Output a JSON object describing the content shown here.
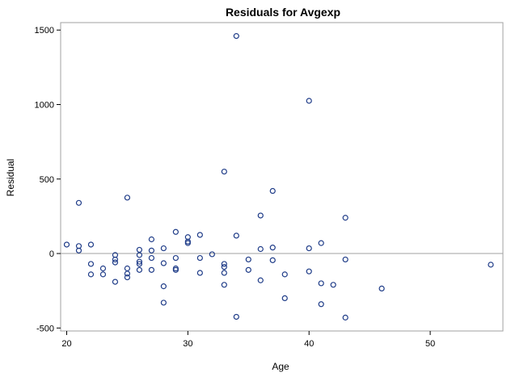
{
  "chart_data": {
    "type": "scatter",
    "title": "Residuals for Avgexp",
    "xlabel": "Age",
    "ylabel": "Residual",
    "xlim": [
      19.5,
      56
    ],
    "ylim": [
      -520,
      1550
    ],
    "xticks": [
      20,
      30,
      40,
      50
    ],
    "yticks": [
      -500,
      0,
      500,
      1000,
      1500
    ],
    "reference_line_y": 0,
    "grid": false,
    "legend": "none",
    "marker": "open-circle",
    "colors": {
      "marker": "#1f3c88",
      "reference_line": "#a0a0a0",
      "frame": "#a0a0a0"
    },
    "points": [
      {
        "x": 20,
        "y": 60
      },
      {
        "x": 21,
        "y": 340
      },
      {
        "x": 21,
        "y": 50
      },
      {
        "x": 21,
        "y": 20
      },
      {
        "x": 22,
        "y": 60
      },
      {
        "x": 22,
        "y": -70
      },
      {
        "x": 22,
        "y": -140
      },
      {
        "x": 23,
        "y": -100
      },
      {
        "x": 23,
        "y": -140
      },
      {
        "x": 24,
        "y": -10
      },
      {
        "x": 24,
        "y": -40
      },
      {
        "x": 24,
        "y": -60
      },
      {
        "x": 24,
        "y": -190
      },
      {
        "x": 25,
        "y": 375
      },
      {
        "x": 25,
        "y": -100
      },
      {
        "x": 25,
        "y": -135
      },
      {
        "x": 25,
        "y": -160
      },
      {
        "x": 26,
        "y": 25
      },
      {
        "x": 26,
        "y": -10
      },
      {
        "x": 26,
        "y": -55
      },
      {
        "x": 26,
        "y": -70
      },
      {
        "x": 26,
        "y": -110
      },
      {
        "x": 27,
        "y": 95
      },
      {
        "x": 27,
        "y": 20
      },
      {
        "x": 27,
        "y": -30
      },
      {
        "x": 27,
        "y": -110
      },
      {
        "x": 28,
        "y": 35
      },
      {
        "x": 28,
        "y": -65
      },
      {
        "x": 28,
        "y": -220
      },
      {
        "x": 28,
        "y": -330
      },
      {
        "x": 29,
        "y": 145
      },
      {
        "x": 29,
        "y": -30
      },
      {
        "x": 29,
        "y": -100
      },
      {
        "x": 29,
        "y": -110
      },
      {
        "x": 30,
        "y": 110
      },
      {
        "x": 30,
        "y": 80
      },
      {
        "x": 30,
        "y": 70
      },
      {
        "x": 31,
        "y": 125
      },
      {
        "x": 31,
        "y": -30
      },
      {
        "x": 31,
        "y": -130
      },
      {
        "x": 32,
        "y": -5
      },
      {
        "x": 33,
        "y": 550
      },
      {
        "x": 33,
        "y": -70
      },
      {
        "x": 33,
        "y": -90
      },
      {
        "x": 33,
        "y": -130
      },
      {
        "x": 33,
        "y": -210
      },
      {
        "x": 34,
        "y": 1460
      },
      {
        "x": 34,
        "y": 120
      },
      {
        "x": 34,
        "y": -425
      },
      {
        "x": 35,
        "y": -40
      },
      {
        "x": 35,
        "y": -110
      },
      {
        "x": 36,
        "y": 255
      },
      {
        "x": 36,
        "y": 30
      },
      {
        "x": 36,
        "y": -180
      },
      {
        "x": 37,
        "y": 420
      },
      {
        "x": 37,
        "y": 40
      },
      {
        "x": 37,
        "y": -45
      },
      {
        "x": 38,
        "y": -140
      },
      {
        "x": 38,
        "y": -300
      },
      {
        "x": 40,
        "y": 1025
      },
      {
        "x": 40,
        "y": 35
      },
      {
        "x": 40,
        "y": -120
      },
      {
        "x": 41,
        "y": 70
      },
      {
        "x": 41,
        "y": -200
      },
      {
        "x": 41,
        "y": -340
      },
      {
        "x": 42,
        "y": -210
      },
      {
        "x": 43,
        "y": 240
      },
      {
        "x": 43,
        "y": -40
      },
      {
        "x": 43,
        "y": -430
      },
      {
        "x": 46,
        "y": -235
      },
      {
        "x": 55,
        "y": -75
      }
    ]
  }
}
